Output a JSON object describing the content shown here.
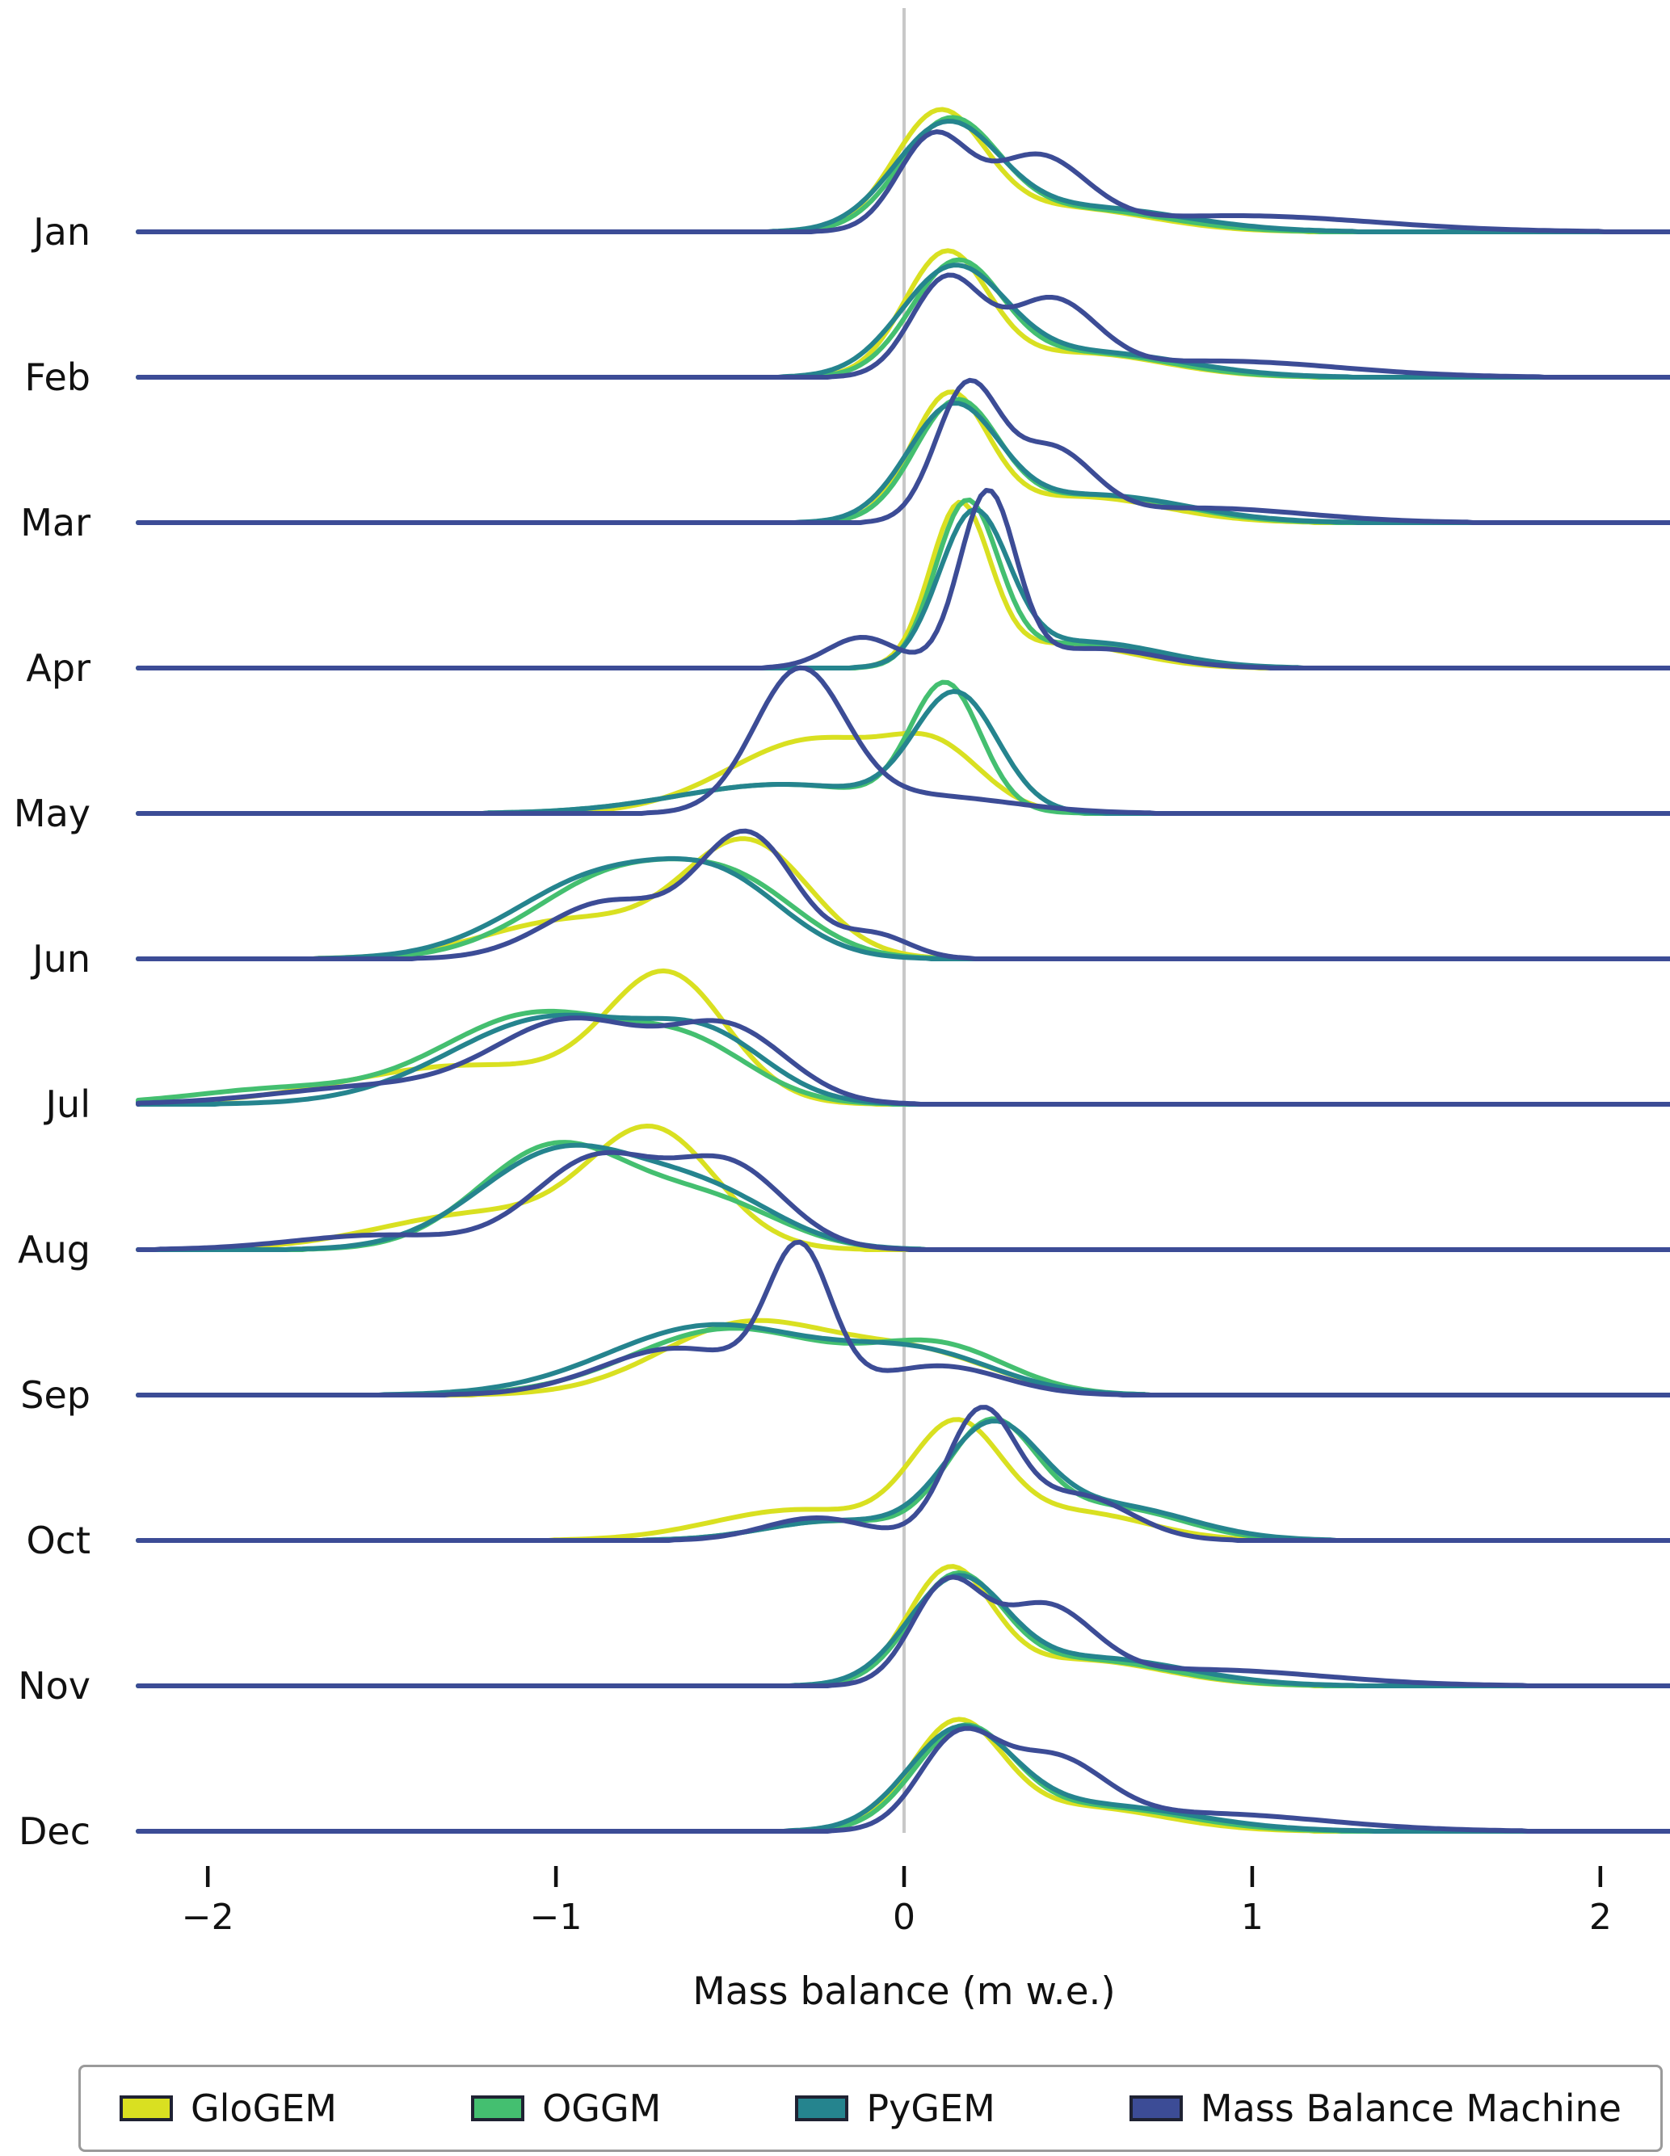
{
  "figure": {
    "background": "#ffffff",
    "zero_line_color": "#c8c8c8",
    "axis_color": "#111111",
    "baseline_color": "#3c4c96"
  },
  "chart_data": {
    "type": "ridgeline-kde",
    "title": "",
    "xlabel": "Mass balance (m w.e.)",
    "x_range": [
      -2.2,
      2.2
    ],
    "zero_reference_line": true,
    "grid": false,
    "legend_position": "bottom",
    "x_ticks": [
      {
        "value": -2,
        "label": "−2"
      },
      {
        "value": -1,
        "label": "−1"
      },
      {
        "value": 0,
        "label": "0"
      },
      {
        "value": 1,
        "label": "1"
      },
      {
        "value": 2,
        "label": "2"
      }
    ],
    "rows": [
      "Jan",
      "Feb",
      "Mar",
      "Apr",
      "May",
      "Jun",
      "Jul",
      "Aug",
      "Sep",
      "Oct",
      "Nov",
      "Dec"
    ],
    "series": [
      {
        "name": "GloGEM",
        "color": "#d9e021"
      },
      {
        "name": "OGGM",
        "color": "#44bf70"
      },
      {
        "name": "PyGEM",
        "color": "#25848e"
      },
      {
        "name": "Mass Balance Machine",
        "color": "#3c4c96"
      }
    ],
    "component_format": "[peak_height_px, mean_m_we, sigma_m_we] — gaussian mixture approximating each KDE curve",
    "densities": {
      "Jan": {
        "GloGEM": [
          [
            140,
            0.1,
            0.13
          ],
          [
            30,
            0.45,
            0.25
          ]
        ],
        "OGGM": [
          [
            132,
            0.13,
            0.14
          ],
          [
            28,
            0.5,
            0.25
          ]
        ],
        "PyGEM": [
          [
            126,
            0.12,
            0.15
          ],
          [
            30,
            0.52,
            0.28
          ]
        ],
        "Mass Balance Machine": [
          [
            112,
            0.08,
            0.1
          ],
          [
            88,
            0.38,
            0.14
          ],
          [
            20,
            0.95,
            0.4
          ]
        ]
      },
      "Feb": {
        "GloGEM": [
          [
            148,
            0.12,
            0.12
          ],
          [
            30,
            0.5,
            0.24
          ]
        ],
        "OGGM": [
          [
            136,
            0.15,
            0.13
          ],
          [
            30,
            0.52,
            0.24
          ]
        ],
        "PyGEM": [
          [
            130,
            0.14,
            0.15
          ],
          [
            30,
            0.55,
            0.26
          ]
        ],
        "Mass Balance Machine": [
          [
            118,
            0.12,
            0.1
          ],
          [
            90,
            0.42,
            0.13
          ],
          [
            20,
            0.9,
            0.35
          ]
        ]
      },
      "Mar": {
        "GloGEM": [
          [
            152,
            0.13,
            0.11
          ],
          [
            32,
            0.5,
            0.24
          ]
        ],
        "OGGM": [
          [
            144,
            0.15,
            0.12
          ],
          [
            34,
            0.55,
            0.24
          ]
        ],
        "PyGEM": [
          [
            138,
            0.14,
            0.13
          ],
          [
            34,
            0.55,
            0.26
          ]
        ],
        "Mass Balance Machine": [
          [
            162,
            0.18,
            0.09
          ],
          [
            86,
            0.42,
            0.12
          ],
          [
            18,
            0.85,
            0.3
          ]
        ]
      },
      "Apr": {
        "GloGEM": [
          [
            195,
            0.16,
            0.085
          ],
          [
            30,
            0.45,
            0.2
          ]
        ],
        "OGGM": [
          [
            200,
            0.18,
            0.09
          ],
          [
            30,
            0.5,
            0.2
          ]
        ],
        "PyGEM": [
          [
            185,
            0.2,
            0.1
          ],
          [
            32,
            0.52,
            0.22
          ]
        ],
        "Mass Balance Machine": [
          [
            215,
            0.24,
            0.08
          ],
          [
            38,
            -0.12,
            0.1
          ],
          [
            24,
            0.55,
            0.18
          ]
        ]
      },
      "May": {
        "GloGEM": [
          [
            92,
            -0.25,
            0.25
          ],
          [
            58,
            0.1,
            0.13
          ]
        ],
        "OGGM": [
          [
            152,
            0.12,
            0.1
          ],
          [
            36,
            -0.35,
            0.3
          ]
        ],
        "PyGEM": [
          [
            142,
            0.15,
            0.12
          ],
          [
            36,
            -0.35,
            0.3
          ]
        ],
        "Mass Balance Machine": [
          [
            172,
            -0.3,
            0.13
          ],
          [
            22,
            0.05,
            0.25
          ]
        ]
      },
      "Jun": {
        "GloGEM": [
          [
            142,
            -0.45,
            0.18
          ],
          [
            48,
            -0.95,
            0.25
          ]
        ],
        "OGGM": [
          [
            108,
            -0.8,
            0.25
          ],
          [
            62,
            -0.45,
            0.18
          ]
        ],
        "PyGEM": [
          [
            104,
            -0.85,
            0.26
          ],
          [
            66,
            -0.5,
            0.18
          ]
        ],
        "Mass Balance Machine": [
          [
            152,
            -0.45,
            0.14
          ],
          [
            70,
            -0.85,
            0.18
          ],
          [
            28,
            -0.08,
            0.1
          ]
        ]
      },
      "Jul": {
        "GloGEM": [
          [
            152,
            -0.68,
            0.17
          ],
          [
            48,
            -1.25,
            0.35
          ]
        ],
        "OGGM": [
          [
            112,
            -1.05,
            0.28
          ],
          [
            55,
            -0.6,
            0.18
          ],
          [
            18,
            -1.8,
            0.25
          ]
        ],
        "PyGEM": [
          [
            108,
            -1.0,
            0.3
          ],
          [
            60,
            -0.55,
            0.17
          ]
        ],
        "Mass Balance Machine": [
          [
            100,
            -0.95,
            0.22
          ],
          [
            88,
            -0.5,
            0.17
          ],
          [
            22,
            -1.5,
            0.3
          ]
        ]
      },
      "Aug": {
        "GloGEM": [
          [
            140,
            -0.72,
            0.18
          ],
          [
            45,
            -1.2,
            0.3
          ]
        ],
        "OGGM": [
          [
            128,
            -1.0,
            0.22
          ],
          [
            55,
            -0.55,
            0.2
          ]
        ],
        "PyGEM": [
          [
            122,
            -0.98,
            0.24
          ],
          [
            60,
            -0.55,
            0.2
          ]
        ],
        "Mass Balance Machine": [
          [
            112,
            -0.88,
            0.18
          ],
          [
            100,
            -0.5,
            0.16
          ],
          [
            18,
            -1.5,
            0.25
          ]
        ]
      },
      "Sep": {
        "GloGEM": [
          [
            88,
            -0.45,
            0.25
          ],
          [
            48,
            0.05,
            0.22
          ]
        ],
        "OGGM": [
          [
            82,
            -0.5,
            0.28
          ],
          [
            58,
            0.1,
            0.2
          ]
        ],
        "PyGEM": [
          [
            86,
            -0.55,
            0.3
          ],
          [
            48,
            0.05,
            0.22
          ]
        ],
        "Mass Balance Machine": [
          [
            170,
            -0.3,
            0.09
          ],
          [
            58,
            -0.65,
            0.22
          ],
          [
            36,
            0.1,
            0.18
          ]
        ]
      },
      "Oct": {
        "GloGEM": [
          [
            135,
            0.15,
            0.13
          ],
          [
            38,
            -0.3,
            0.25
          ],
          [
            34,
            0.5,
            0.2
          ]
        ],
        "OGGM": [
          [
            140,
            0.25,
            0.13
          ],
          [
            40,
            0.6,
            0.2
          ],
          [
            24,
            -0.2,
            0.2
          ]
        ],
        "PyGEM": [
          [
            134,
            0.25,
            0.14
          ],
          [
            42,
            0.6,
            0.22
          ],
          [
            24,
            -0.2,
            0.2
          ]
        ],
        "Mass Balance Machine": [
          [
            155,
            0.22,
            0.1
          ],
          [
            55,
            0.5,
            0.15
          ],
          [
            28,
            -0.25,
            0.15
          ]
        ]
      },
      "Nov": {
        "GloGEM": [
          [
            138,
            0.13,
            0.12
          ],
          [
            32,
            0.5,
            0.24
          ]
        ],
        "OGGM": [
          [
            130,
            0.15,
            0.13
          ],
          [
            32,
            0.52,
            0.24
          ]
        ],
        "PyGEM": [
          [
            126,
            0.15,
            0.14
          ],
          [
            34,
            0.55,
            0.26
          ]
        ],
        "Mass Balance Machine": [
          [
            118,
            0.12,
            0.1
          ],
          [
            92,
            0.4,
            0.14
          ],
          [
            20,
            0.85,
            0.35
          ]
        ]
      },
      "Dec": {
        "GloGEM": [
          [
            128,
            0.15,
            0.13
          ],
          [
            30,
            0.5,
            0.24
          ]
        ],
        "OGGM": [
          [
            122,
            0.17,
            0.14
          ],
          [
            30,
            0.55,
            0.25
          ]
        ],
        "PyGEM": [
          [
            118,
            0.16,
            0.15
          ],
          [
            32,
            0.55,
            0.28
          ]
        ],
        "Mass Balance Machine": [
          [
            105,
            0.15,
            0.11
          ],
          [
            82,
            0.42,
            0.15
          ],
          [
            22,
            0.85,
            0.35
          ]
        ]
      }
    }
  }
}
